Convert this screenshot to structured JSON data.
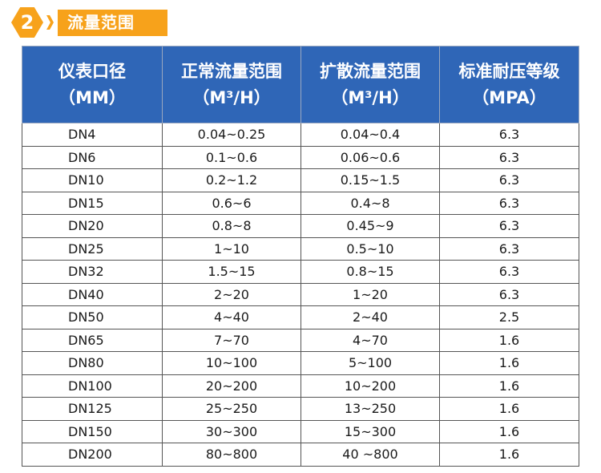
{
  "section": {
    "number": "2",
    "title": "流量范围"
  },
  "table": {
    "columns": [
      {
        "line1": "仪表口径",
        "line2": "（MM）"
      },
      {
        "line1": "正常流量范围",
        "line2": "（M³/H）"
      },
      {
        "line1": "扩散流量范围",
        "line2": "（M³/H）"
      },
      {
        "line1": "标准耐压等级",
        "line2": "（MPA）"
      }
    ],
    "rows": [
      [
        "DN4",
        "0.04~0.25",
        "0.04~0.4",
        "6.3"
      ],
      [
        "DN6",
        "0.1~0.6",
        "0.06~0.6",
        "6.3"
      ],
      [
        "DN10",
        "0.2~1.2",
        "0.15~1.5",
        "6.3"
      ],
      [
        "DN15",
        "0.6~6",
        "0.4~8",
        "6.3"
      ],
      [
        "DN20",
        "0.8~8",
        "0.45~9",
        "6.3"
      ],
      [
        "DN25",
        "1~10",
        "0.5~10",
        "6.3"
      ],
      [
        "DN32",
        "1.5~15",
        "0.8~15",
        "6.3"
      ],
      [
        "DN40",
        "2~20",
        "1~20",
        "6.3"
      ],
      [
        "DN50",
        "4~40",
        "2~40",
        "2.5"
      ],
      [
        "DN65",
        "7~70",
        "4~70",
        "1.6"
      ],
      [
        "DN80",
        "10~100",
        "5~100",
        "1.6"
      ],
      [
        "DN100",
        "20~200",
        "10~200",
        "1.6"
      ],
      [
        "DN125",
        "25~250",
        "13~250",
        "1.6"
      ],
      [
        "DN150",
        "30~300",
        "15~300",
        "1.6"
      ],
      [
        "DN200",
        "80~800",
        "40 ~800",
        "1.6"
      ]
    ]
  },
  "colors": {
    "accent_orange": "#f7a21b",
    "header_blue": "#2f66b7"
  }
}
